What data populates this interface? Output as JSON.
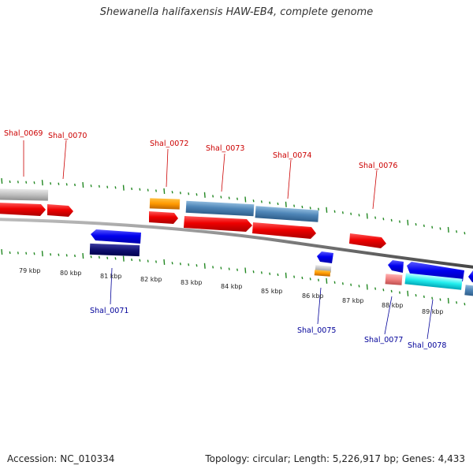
{
  "title": "Shewanella halifaxensis HAW-EB4, complete genome",
  "footer": {
    "accession": "Accession: NC_010334",
    "topology": "Topology: circular; Length: 5,226,917 bp; Genes: 4,433"
  },
  "colors": {
    "forward_label": "#cc0000",
    "reverse_label": "#000099",
    "backbone": "#808080",
    "tick": "#228822"
  },
  "scale_labels": [
    "79 kbp",
    "80 kbp",
    "81 kbp",
    "82 kbp",
    "83 kbp",
    "84 kbp",
    "85 kbp",
    "86 kbp",
    "87 kbp",
    "88 kbp",
    "89 kbp"
  ],
  "gene_labels_forward": [
    "Shal_0069",
    "Shal_0070",
    "Shal_0072",
    "Shal_0073",
    "Shal_0074",
    "Shal_0076"
  ],
  "gene_labels_reverse": [
    "Shal_0071",
    "Shal_0075",
    "Shal_0077",
    "Shal_0078"
  ]
}
